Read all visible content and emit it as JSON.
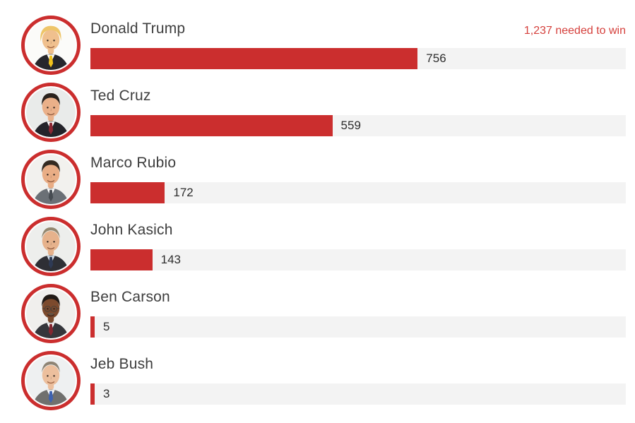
{
  "chart": {
    "note": "1,237 needed to win",
    "max_value": 1237,
    "bar_color": "#cb2e2e",
    "ring_color": "#cb2e2e",
    "track_color": "#f3f3f3",
    "note_color": "#d5403c",
    "name_color": "#3e3e3e",
    "value_color": "#2d2d2d"
  },
  "chart_data": {
    "type": "bar",
    "orientation": "horizontal",
    "title": "",
    "annotation": "1,237 needed to win",
    "categories": [
      "Donald Trump",
      "Ted Cruz",
      "Marco Rubio",
      "John Kasich",
      "Ben Carson",
      "Jeb Bush"
    ],
    "values": [
      756,
      559,
      172,
      143,
      5,
      3
    ],
    "xlim": [
      0,
      1237
    ],
    "grid": false,
    "legend": false,
    "value_labels": "right-of-bar"
  },
  "candidates": [
    {
      "name": "Donald Trump",
      "delegates": 756,
      "avatar": {
        "bg": "#fbfbf9",
        "skin": "#f0c08e",
        "hair": "#eec569",
        "hair_style": "swept",
        "suit": "#26262c",
        "shirt": "#ffffff",
        "tie": "#f2c21c",
        "glasses": false,
        "mustache": false,
        "mouth": "#9c5f3f"
      }
    },
    {
      "name": "Ted Cruz",
      "delegates": 559,
      "avatar": {
        "bg": "#e9ebea",
        "skin": "#eab089",
        "hair": "#2a221d",
        "hair_style": "short",
        "suit": "#23232a",
        "shirt": "#ffffff",
        "tie": "#8c2633",
        "glasses": false,
        "mustache": false,
        "mouth": "#8f5a3e"
      }
    },
    {
      "name": "Marco Rubio",
      "delegates": 172,
      "avatar": {
        "bg": "#f2f1ee",
        "skin": "#e9ad85",
        "hair": "#342a21",
        "hair_style": "short",
        "suit": "#6b7076",
        "shirt": "#ffffff",
        "tie": "#474c52",
        "glasses": false,
        "mustache": false,
        "mouth": "#8f5a3e"
      }
    },
    {
      "name": "John Kasich",
      "delegates": 143,
      "avatar": {
        "bg": "#edeeec",
        "skin": "#e6b28c",
        "hair": "#93876f",
        "hair_style": "receding",
        "suit": "#2e2f35",
        "shirt": "#d8e4ef",
        "tie": "#2e3a55",
        "glasses": false,
        "mustache": false,
        "mouth": "#8f5a3e"
      }
    },
    {
      "name": "Ben Carson",
      "delegates": 5,
      "avatar": {
        "bg": "#f0efed",
        "skin": "#7c4a2d",
        "hair": "#211a16",
        "hair_style": "short",
        "suit": "#35363b",
        "shirt": "#ffffff",
        "tie": "#832630",
        "glasses": true,
        "mustache": true,
        "mouth": "#3a241c"
      }
    },
    {
      "name": "Jeb Bush",
      "delegates": 3,
      "avatar": {
        "bg": "#eef0f1",
        "skin": "#ecbf9d",
        "hair": "#8e8474",
        "hair_style": "receding",
        "suit": "#70706e",
        "shirt": "#ffffff",
        "tie": "#3e62b0",
        "glasses": false,
        "mustache": false,
        "mouth": "#9c6343"
      }
    }
  ]
}
